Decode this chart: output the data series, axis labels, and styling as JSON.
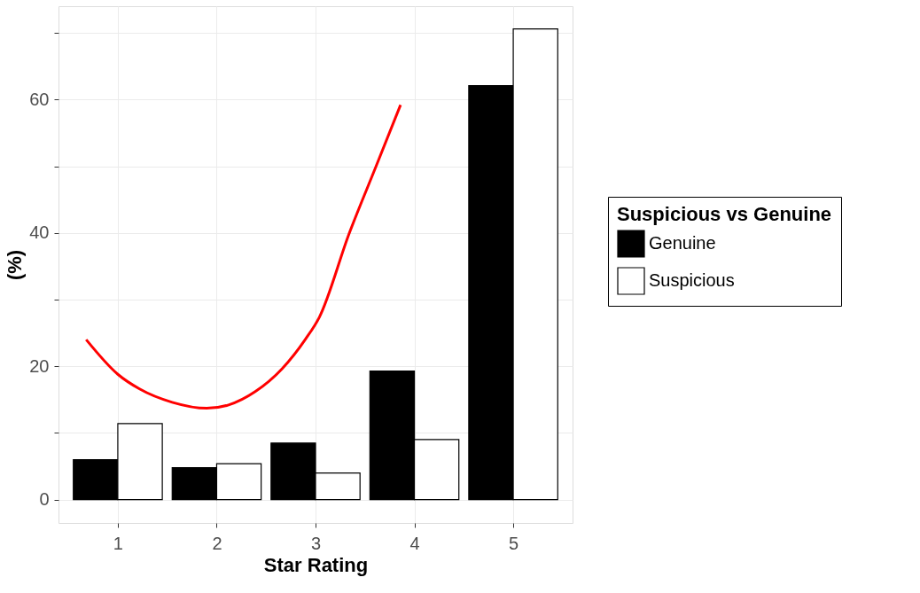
{
  "chart_data": {
    "type": "bar",
    "xlabel": "Star Rating",
    "ylabel": "(%)",
    "legend_title": "Suspicious vs Genuine",
    "x": [
      1,
      2,
      3,
      4,
      5
    ],
    "series": [
      {
        "name": "Genuine",
        "color": "#000000",
        "values": [
          6.0,
          4.8,
          8.5,
          19.3,
          62.1
        ]
      },
      {
        "name": "Suspicious",
        "color": "#ffffff",
        "values": [
          11.4,
          5.4,
          4.0,
          9.0,
          70.6
        ]
      },
      {
        "type": "line",
        "color": "#ff0000",
        "x": [
          0.68,
          1.0,
          1.22,
          1.55,
          1.9,
          2.12,
          2.39,
          2.66,
          2.9,
          3.04,
          3.34,
          3.61,
          3.86
        ],
        "values": [
          24.0,
          18.8,
          16.6,
          14.6,
          13.7,
          14.2,
          16.2,
          19.6,
          24.1,
          27.4,
          39.9,
          49.9,
          59.2
        ]
      }
    ],
    "xlim": [
      0.4,
      5.6
    ],
    "xticks": [
      1,
      2,
      3,
      4,
      5
    ],
    "ylim": [
      -3.5,
      74
    ],
    "yticks": [
      0,
      {
        "value": 10,
        "label": null
      },
      20,
      {
        "value": 30,
        "label": null
      },
      40,
      {
        "value": 50,
        "label": null
      },
      60,
      {
        "value": 70,
        "label": null
      }
    ],
    "grid": true,
    "legend": "right"
  }
}
